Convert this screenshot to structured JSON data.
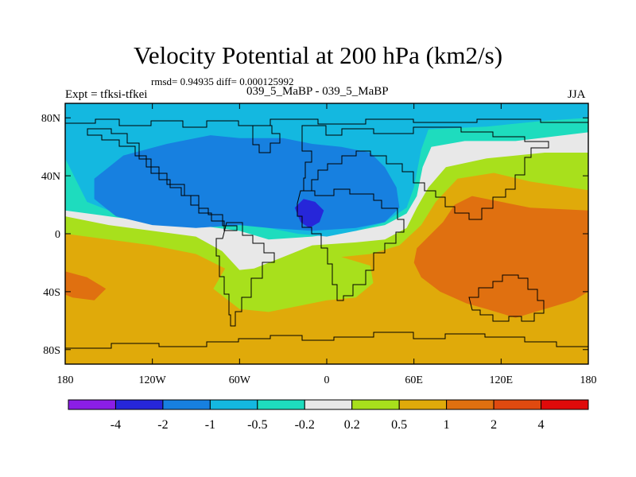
{
  "header": {
    "title": "Velocity Potential at 200 hPa (km2/s)",
    "stats": "rmsd= 0.94935 diff= 0.000125992",
    "expt": "Expt = tfksi-tfkei",
    "center_label": "039_5_MaBP - 039_5_MaBP",
    "season": "JJA"
  },
  "chart_data": {
    "type": "heatmap",
    "title": "Velocity Potential at 200 hPa (km2/s)",
    "xlabel": "",
    "ylabel": "",
    "xlim": [
      -180,
      180
    ],
    "ylim": [
      -90,
      90
    ],
    "x_ticks": [
      {
        "value": -180,
        "label": "180"
      },
      {
        "value": -120,
        "label": "120W"
      },
      {
        "value": -60,
        "label": "60W"
      },
      {
        "value": 0,
        "label": "0"
      },
      {
        "value": 60,
        "label": "60E"
      },
      {
        "value": 120,
        "label": "120E"
      },
      {
        "value": 180,
        "label": "180"
      }
    ],
    "y_ticks": [
      {
        "value": 80,
        "label": "80N"
      },
      {
        "value": 40,
        "label": "40N"
      },
      {
        "value": 0,
        "label": "0"
      },
      {
        "value": -40,
        "label": "40S"
      },
      {
        "value": -80,
        "label": "80S"
      }
    ],
    "colorbar": {
      "levels": [
        "-4",
        "-2",
        "-1",
        "-0.5",
        "-0.2",
        "0.2",
        "0.5",
        "1",
        "2",
        "4"
      ],
      "colors": [
        "#8b1ee6",
        "#2626d9",
        "#1780e0",
        "#14b8e0",
        "#1edcbe",
        "#e8e8e8",
        "#a8e01c",
        "#e0aa0a",
        "#e07010",
        "#e04a10",
        "#e00a0a"
      ]
    },
    "regions": [
      {
        "value_class": "0.5 to 1",
        "points": [
          [
            -180,
            -90
          ],
          [
            180,
            -90
          ],
          [
            180,
            90
          ],
          [
            -180,
            90
          ]
        ]
      },
      {
        "value_class": "0.2 to 0.5",
        "points": [
          [
            -180,
            0
          ],
          [
            -150,
            -4
          ],
          [
            -120,
            -8
          ],
          [
            -90,
            -14
          ],
          [
            -70,
            -24
          ],
          [
            -78,
            -38
          ],
          [
            -60,
            -52
          ],
          [
            -40,
            -54
          ],
          [
            -20,
            -50
          ],
          [
            0,
            -46
          ],
          [
            20,
            -44
          ],
          [
            32,
            -34
          ],
          [
            30,
            -22
          ],
          [
            10,
            -16
          ],
          [
            30,
            -14
          ],
          [
            50,
            -8
          ],
          [
            65,
            6
          ],
          [
            75,
            22
          ],
          [
            90,
            38
          ],
          [
            115,
            42
          ],
          [
            140,
            36
          ],
          [
            180,
            30
          ],
          [
            180,
            90
          ],
          [
            -180,
            90
          ]
        ]
      },
      {
        "value_class": "-0.2 to 0.2",
        "points": [
          [
            -180,
            12
          ],
          [
            -150,
            6
          ],
          [
            -120,
            2
          ],
          [
            -90,
            -2
          ],
          [
            -72,
            -12
          ],
          [
            -60,
            -25
          ],
          [
            -50,
            -24
          ],
          [
            -30,
            -16
          ],
          [
            -10,
            -8
          ],
          [
            20,
            -6
          ],
          [
            40,
            -4
          ],
          [
            55,
            4
          ],
          [
            62,
            18
          ],
          [
            70,
            32
          ],
          [
            82,
            46
          ],
          [
            110,
            52
          ],
          [
            150,
            56
          ],
          [
            180,
            56
          ],
          [
            180,
            90
          ],
          [
            -180,
            90
          ]
        ]
      },
      {
        "value_class": "-0.5 to -0.2",
        "points": [
          [
            -180,
            16
          ],
          [
            -150,
            12
          ],
          [
            -120,
            8
          ],
          [
            -90,
            6
          ],
          [
            -60,
            2
          ],
          [
            -40,
            -4
          ],
          [
            -10,
            -2
          ],
          [
            20,
            2
          ],
          [
            40,
            6
          ],
          [
            55,
            14
          ],
          [
            62,
            26
          ],
          [
            66,
            46
          ],
          [
            72,
            60
          ],
          [
            95,
            64
          ],
          [
            130,
            64
          ],
          [
            180,
            70
          ],
          [
            180,
            90
          ],
          [
            -180,
            90
          ]
        ]
      },
      {
        "value_class": "-1 to -0.5",
        "points": [
          [
            -180,
            52
          ],
          [
            -175,
            42
          ],
          [
            -165,
            22
          ],
          [
            -150,
            16
          ],
          [
            -120,
            14
          ],
          [
            -90,
            10
          ],
          [
            -60,
            8
          ],
          [
            -40,
            4
          ],
          [
            -20,
            0
          ],
          [
            0,
            -2
          ],
          [
            20,
            2
          ],
          [
            40,
            8
          ],
          [
            55,
            18
          ],
          [
            60,
            32
          ],
          [
            65,
            58
          ],
          [
            70,
            72
          ],
          [
            110,
            74
          ],
          [
            150,
            78
          ],
          [
            180,
            80
          ],
          [
            180,
            90
          ],
          [
            -180,
            90
          ]
        ]
      },
      {
        "value_class": "-2 to -1",
        "points": [
          [
            -145,
            12
          ],
          [
            -120,
            6
          ],
          [
            -90,
            4
          ],
          [
            -60,
            6
          ],
          [
            -40,
            4
          ],
          [
            -10,
            2
          ],
          [
            20,
            4
          ],
          [
            40,
            8
          ],
          [
            50,
            18
          ],
          [
            48,
            32
          ],
          [
            40,
            46
          ],
          [
            30,
            56
          ],
          [
            10,
            60
          ],
          [
            -10,
            62
          ],
          [
            -30,
            66
          ],
          [
            -60,
            66
          ],
          [
            -80,
            68
          ],
          [
            -110,
            62
          ],
          [
            -140,
            54
          ],
          [
            -160,
            38
          ],
          [
            -160,
            24
          ]
        ]
      },
      {
        "value_class": "-4 to -2",
        "points": [
          [
            -22,
            18
          ],
          [
            -18,
            8
          ],
          [
            -12,
            4
          ],
          [
            -5,
            8
          ],
          [
            -2,
            16
          ],
          [
            -8,
            22
          ],
          [
            -16,
            24
          ]
        ]
      },
      {
        "value_class": "1 to 2",
        "points": [
          [
            -180,
            -26
          ],
          [
            -165,
            -30
          ],
          [
            -152,
            -38
          ],
          [
            -160,
            -46
          ],
          [
            -175,
            -44
          ],
          [
            -180,
            -42
          ]
        ]
      },
      {
        "value_class": "1 to 2",
        "points": [
          [
            60,
            -20
          ],
          [
            62,
            -10
          ],
          [
            70,
            -2
          ],
          [
            80,
            8
          ],
          [
            88,
            20
          ],
          [
            100,
            26
          ],
          [
            120,
            22
          ],
          [
            140,
            18
          ],
          [
            180,
            16
          ],
          [
            180,
            -40
          ],
          [
            170,
            -46
          ],
          [
            150,
            -52
          ],
          [
            130,
            -58
          ],
          [
            110,
            -52
          ],
          [
            96,
            -48
          ],
          [
            78,
            -40
          ],
          [
            65,
            -30
          ]
        ]
      }
    ],
    "annotations": []
  }
}
